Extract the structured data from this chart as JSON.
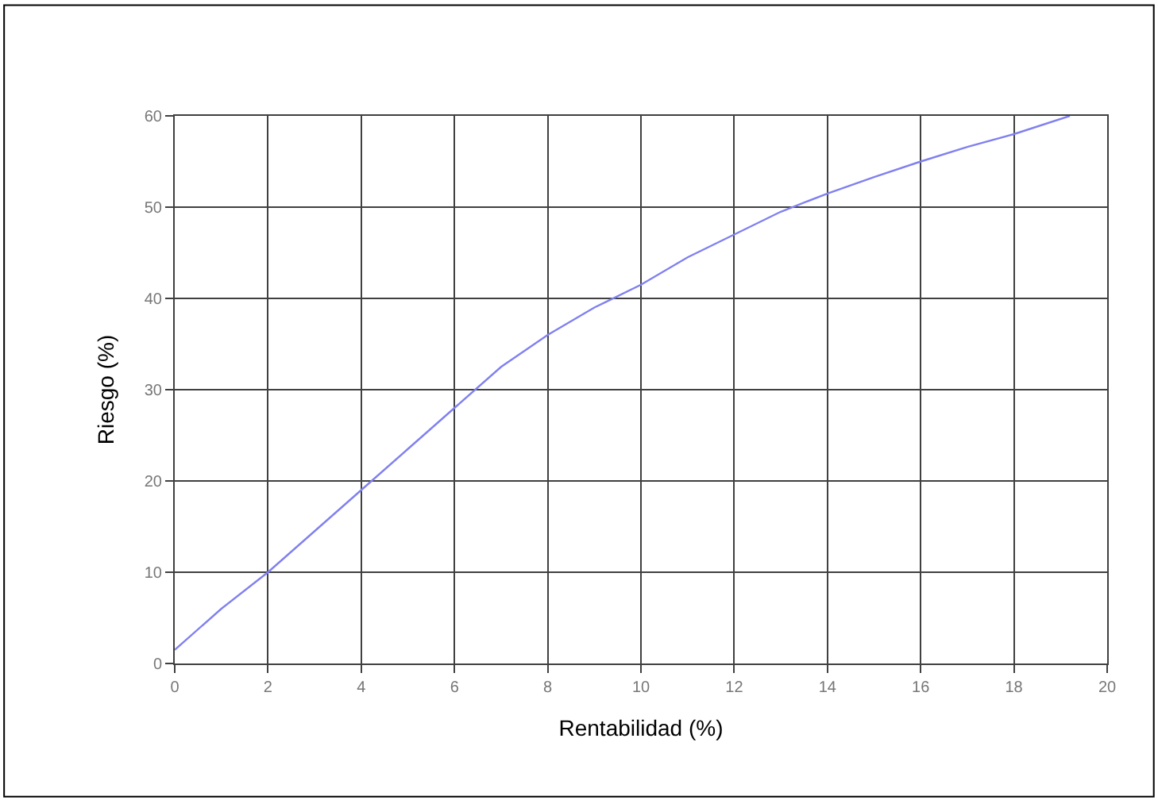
{
  "chart_data": {
    "type": "line",
    "xlabel": "Rentabilidad (%)",
    "ylabel": "Riesgo (%)",
    "x": [
      0,
      1,
      2,
      3,
      4,
      5,
      6,
      7,
      8,
      9,
      10,
      11,
      12,
      13,
      14,
      15,
      16,
      17,
      18,
      19.2
    ],
    "series": [
      {
        "color": "#8080f0",
        "values": [
          1.5,
          6,
          10,
          14.5,
          19,
          23.5,
          28,
          32.5,
          36,
          39,
          41.5,
          44.5,
          47,
          49.5,
          51.5,
          53.3,
          55,
          56.6,
          58,
          60
        ]
      }
    ],
    "xlim": [
      0,
      20
    ],
    "ylim": [
      0,
      60
    ],
    "xticks": [
      0,
      2,
      4,
      6,
      8,
      10,
      12,
      14,
      16,
      18,
      20
    ],
    "yticks": [
      0,
      10,
      20,
      30,
      40,
      50,
      60
    ],
    "grid": true,
    "marker": "none",
    "line_style": "solid"
  }
}
